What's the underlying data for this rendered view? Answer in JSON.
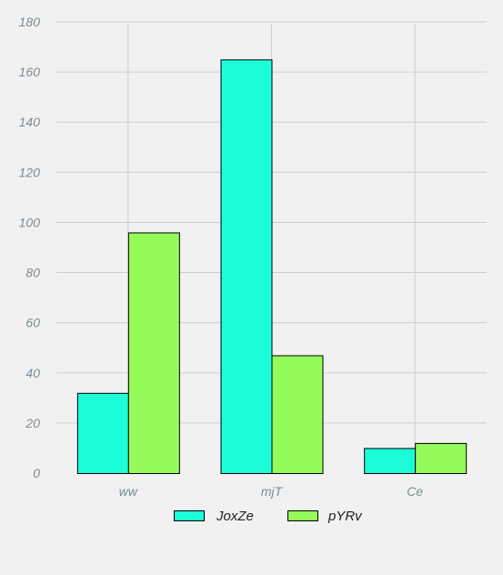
{
  "chart_data": {
    "type": "bar",
    "categories": [
      "ww",
      "mjT",
      "Ce"
    ],
    "series": [
      {
        "name": "JoxZe",
        "values": [
          32,
          165,
          10
        ],
        "color": "#1cfed9"
      },
      {
        "name": "pYRv",
        "values": [
          96,
          47,
          12
        ],
        "color": "#95fb5a"
      }
    ],
    "ylim": [
      0,
      180
    ],
    "yticks": [
      0,
      20,
      40,
      60,
      80,
      100,
      120,
      140,
      160,
      180
    ],
    "grid": true,
    "legend_position": "bottom"
  }
}
